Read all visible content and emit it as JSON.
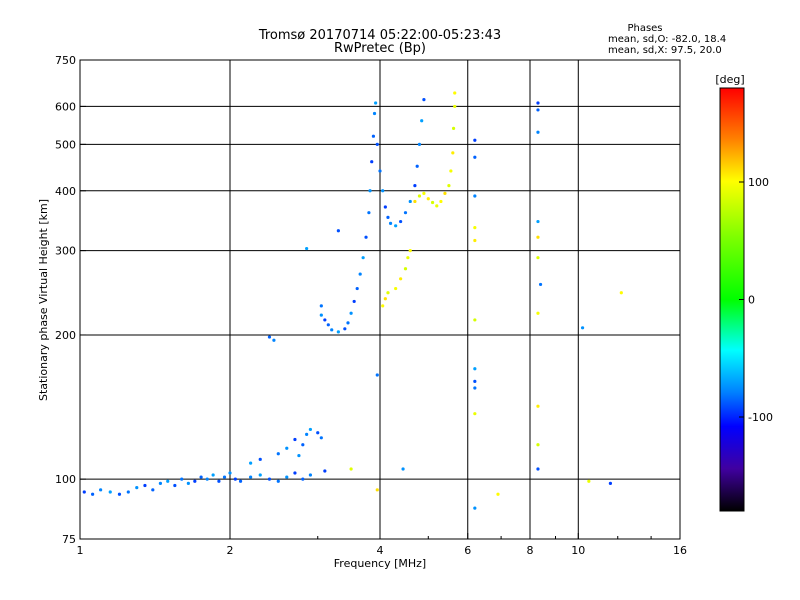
{
  "chart_data": {
    "type": "scatter",
    "title_line1": "Tromsø 20170714 05:22:00-05:23:43",
    "title_line2": "RwPretec (Bp)",
    "xlabel": "Frequency [MHz]",
    "ylabel": "Stationary phase Virtual Height [km]",
    "x_scale": "log",
    "y_scale": "log",
    "xlim": [
      1,
      16
    ],
    "ylim": [
      75,
      750
    ],
    "x_ticks": [
      1,
      2,
      4,
      6,
      8,
      10,
      16
    ],
    "x_tick_labels": [
      "1",
      "2",
      "4",
      "6",
      "8",
      "10",
      "16"
    ],
    "y_ticks": [
      75,
      100,
      200,
      300,
      400,
      500,
      600,
      750
    ],
    "y_tick_labels": [
      "75",
      "100",
      "200",
      "300",
      "400",
      "500",
      "600",
      "750"
    ],
    "grid": true,
    "legend": {
      "title": "Phases",
      "line1": "mean, sd,O:  -82.0, 18.4",
      "line2": "mean, sd,X:  97.5, 20.0",
      "position": "top-right"
    },
    "colorbar": {
      "label": "[deg]",
      "range": [
        -180,
        180
      ],
      "ticks": [
        100,
        0,
        -100
      ],
      "tick_labels": [
        "100",
        "0",
        "-100"
      ]
    },
    "series": [
      {
        "name": "O-mode",
        "phase_deg": -82,
        "points": [
          [
            1.02,
            94
          ],
          [
            1.06,
            93
          ],
          [
            1.1,
            95
          ],
          [
            1.15,
            94
          ],
          [
            1.2,
            93
          ],
          [
            1.25,
            94
          ],
          [
            1.3,
            96
          ],
          [
            1.35,
            97
          ],
          [
            1.4,
            95
          ],
          [
            1.45,
            98
          ],
          [
            1.5,
            99
          ],
          [
            1.55,
            97
          ],
          [
            1.6,
            100
          ],
          [
            1.65,
            98
          ],
          [
            1.7,
            99
          ],
          [
            1.75,
            101
          ],
          [
            1.8,
            100
          ],
          [
            1.85,
            102
          ],
          [
            1.9,
            99
          ],
          [
            1.95,
            101
          ],
          [
            2.0,
            103
          ],
          [
            2.05,
            100
          ],
          [
            2.1,
            99
          ],
          [
            2.2,
            101
          ],
          [
            2.3,
            102
          ],
          [
            2.4,
            100
          ],
          [
            2.5,
            99
          ],
          [
            2.6,
            101
          ],
          [
            2.7,
            103
          ],
          [
            2.8,
            100
          ],
          [
            2.9,
            102
          ],
          [
            2.2,
            108
          ],
          [
            2.3,
            110
          ],
          [
            2.5,
            113
          ],
          [
            2.6,
            116
          ],
          [
            2.7,
            121
          ],
          [
            2.8,
            118
          ],
          [
            2.85,
            124
          ],
          [
            2.9,
            127
          ],
          [
            3.0,
            125
          ],
          [
            3.05,
            122
          ],
          [
            2.75,
            112
          ],
          [
            3.1,
            104
          ],
          [
            2.4,
            198
          ],
          [
            2.45,
            195
          ],
          [
            2.85,
            303
          ],
          [
            3.3,
            330
          ],
          [
            3.05,
            230
          ],
          [
            3.05,
            220
          ],
          [
            3.1,
            215
          ],
          [
            3.15,
            210
          ],
          [
            3.2,
            205
          ],
          [
            3.3,
            203
          ],
          [
            3.4,
            206
          ],
          [
            3.45,
            212
          ],
          [
            3.5,
            222
          ],
          [
            3.55,
            235
          ],
          [
            3.6,
            250
          ],
          [
            3.65,
            268
          ],
          [
            3.7,
            290
          ],
          [
            3.75,
            320
          ],
          [
            3.8,
            360
          ],
          [
            3.82,
            400
          ],
          [
            3.85,
            460
          ],
          [
            3.88,
            520
          ],
          [
            3.9,
            580
          ],
          [
            3.92,
            610
          ],
          [
            3.95,
            500
          ],
          [
            4.0,
            440
          ],
          [
            4.05,
            400
          ],
          [
            4.1,
            370
          ],
          [
            4.15,
            352
          ],
          [
            4.2,
            342
          ],
          [
            4.3,
            338
          ],
          [
            4.4,
            345
          ],
          [
            4.5,
            360
          ],
          [
            4.6,
            380
          ],
          [
            4.7,
            410
          ],
          [
            4.75,
            450
          ],
          [
            4.8,
            500
          ],
          [
            4.85,
            560
          ],
          [
            4.9,
            620
          ],
          [
            3.95,
            165
          ],
          [
            4.45,
            105
          ],
          [
            6.2,
            510
          ],
          [
            6.2,
            470
          ],
          [
            6.2,
            390
          ],
          [
            6.2,
            170
          ],
          [
            6.2,
            160
          ],
          [
            6.2,
            155
          ],
          [
            6.2,
            87
          ],
          [
            8.3,
            610
          ],
          [
            8.3,
            590
          ],
          [
            8.3,
            530
          ],
          [
            8.3,
            345
          ],
          [
            8.3,
            105
          ],
          [
            8.4,
            255
          ],
          [
            10.2,
            207
          ],
          [
            11.6,
            98
          ]
        ]
      },
      {
        "name": "X-mode",
        "phase_deg": 97.5,
        "points": [
          [
            4.05,
            230
          ],
          [
            4.1,
            238
          ],
          [
            4.15,
            245
          ],
          [
            4.3,
            250
          ],
          [
            4.4,
            262
          ],
          [
            4.5,
            275
          ],
          [
            4.55,
            290
          ],
          [
            4.6,
            300
          ],
          [
            4.7,
            380
          ],
          [
            4.8,
            390
          ],
          [
            4.9,
            395
          ],
          [
            5.0,
            385
          ],
          [
            5.1,
            378
          ],
          [
            5.2,
            372
          ],
          [
            5.3,
            380
          ],
          [
            5.4,
            395
          ],
          [
            5.5,
            410
          ],
          [
            5.55,
            440
          ],
          [
            5.6,
            480
          ],
          [
            5.62,
            540
          ],
          [
            5.65,
            600
          ],
          [
            5.65,
            640
          ],
          [
            3.95,
            95
          ],
          [
            3.5,
            105
          ],
          [
            6.2,
            335
          ],
          [
            6.2,
            315
          ],
          [
            6.2,
            215
          ],
          [
            6.2,
            137
          ],
          [
            6.9,
            93
          ],
          [
            8.3,
            320
          ],
          [
            8.3,
            290
          ],
          [
            8.3,
            222
          ],
          [
            8.3,
            142
          ],
          [
            8.3,
            118
          ],
          [
            10.5,
            99
          ],
          [
            12.2,
            245
          ]
        ]
      }
    ]
  }
}
